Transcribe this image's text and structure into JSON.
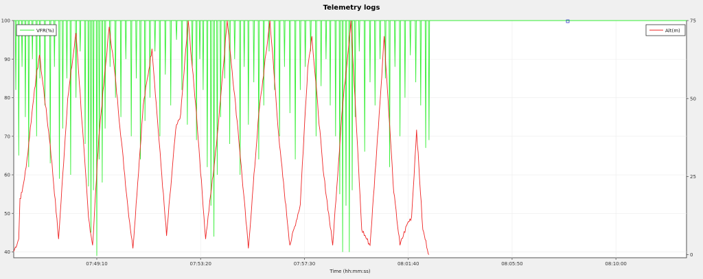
{
  "chart_data": {
    "type": "line",
    "title": "Telemetry logs",
    "xlabel": "Time (hh:mm:ss)",
    "x_ticks": [
      "07:49:10",
      "07:53:20",
      "07:57:30",
      "08:01:40",
      "08:05:50",
      "08:10:00"
    ],
    "y_left": {
      "ticks": [
        40,
        50,
        60,
        70,
        80,
        90,
        100
      ],
      "range": [
        38.5,
        100
      ]
    },
    "y_right": {
      "ticks": [
        0,
        25,
        50,
        75
      ],
      "range": [
        -1,
        75
      ]
    },
    "grid": true,
    "x_range_seconds": [
      0,
      1620
    ],
    "x_tick_seconds": [
      200,
      450,
      700,
      950,
      1200,
      1450
    ],
    "series": [
      {
        "name": "VFR(%)",
        "axis": "left",
        "color": "#33ee33",
        "legend_position": "top-left",
        "note": "mostly at 100 with many sharp downward spikes",
        "dips": [
          [
            5,
            82
          ],
          [
            12,
            65
          ],
          [
            20,
            88
          ],
          [
            28,
            75
          ],
          [
            36,
            62
          ],
          [
            45,
            90
          ],
          [
            55,
            70
          ],
          [
            63,
            85
          ],
          [
            75,
            78
          ],
          [
            88,
            63
          ],
          [
            98,
            88
          ],
          [
            110,
            59
          ],
          [
            118,
            72
          ],
          [
            128,
            85
          ],
          [
            137,
            60
          ],
          [
            150,
            80
          ],
          [
            160,
            92
          ],
          [
            172,
            68
          ],
          [
            180,
            57
          ],
          [
            186,
            45
          ],
          [
            192,
            56
          ],
          [
            200,
            39
          ],
          [
            206,
            64
          ],
          [
            213,
            58
          ],
          [
            220,
            72
          ],
          [
            232,
            88
          ],
          [
            245,
            80
          ],
          [
            258,
            75
          ],
          [
            270,
            90
          ],
          [
            283,
            70
          ],
          [
            295,
            85
          ],
          [
            305,
            64
          ],
          [
            316,
            74
          ],
          [
            328,
            80
          ],
          [
            340,
            92
          ],
          [
            352,
            70
          ],
          [
            365,
            86
          ],
          [
            378,
            78
          ],
          [
            392,
            95
          ],
          [
            405,
            82
          ],
          [
            418,
            73
          ],
          [
            430,
            88
          ],
          [
            440,
            69
          ],
          [
            448,
            90
          ],
          [
            456,
            82
          ],
          [
            466,
            62
          ],
          [
            475,
            52
          ],
          [
            482,
            44
          ],
          [
            490,
            60
          ],
          [
            498,
            75
          ],
          [
            508,
            85
          ],
          [
            520,
            68
          ],
          [
            532,
            90
          ],
          [
            545,
            60
          ],
          [
            555,
            88
          ],
          [
            565,
            73
          ],
          [
            578,
            84
          ],
          [
            590,
            64
          ],
          [
            602,
            78
          ],
          [
            615,
            92
          ],
          [
            628,
            82
          ],
          [
            640,
            70
          ],
          [
            652,
            88
          ],
          [
            665,
            76
          ],
          [
            678,
            64
          ],
          [
            690,
            82
          ],
          [
            702,
            88
          ],
          [
            715,
            92
          ],
          [
            728,
            70
          ],
          [
            740,
            83
          ],
          [
            752,
            90
          ],
          [
            762,
            78
          ],
          [
            775,
            70
          ],
          [
            785,
            55
          ],
          [
            792,
            40
          ],
          [
            800,
            52
          ],
          [
            808,
            40
          ],
          [
            815,
            56
          ],
          [
            822,
            75
          ],
          [
            832,
            92
          ],
          [
            845,
            66
          ],
          [
            858,
            84
          ],
          [
            870,
            78
          ],
          [
            882,
            90
          ],
          [
            895,
            85
          ],
          [
            905,
            62
          ],
          [
            918,
            88
          ],
          [
            930,
            70
          ],
          [
            942,
            80
          ],
          [
            955,
            91
          ],
          [
            968,
            84
          ],
          [
            980,
            78
          ],
          [
            992,
            67
          ],
          [
            1000,
            69
          ]
        ]
      },
      {
        "name": "Alt(m)",
        "axis": "right",
        "color": "#ee2222",
        "legend_position": "top-right",
        "extrema": [
          [
            0,
            1
          ],
          [
            12,
            5
          ],
          [
            15,
            18
          ],
          [
            20,
            20
          ],
          [
            30,
            28
          ],
          [
            50,
            53
          ],
          [
            62,
            64
          ],
          [
            88,
            35
          ],
          [
            108,
            5
          ],
          [
            130,
            50
          ],
          [
            150,
            71
          ],
          [
            180,
            12
          ],
          [
            190,
            3
          ],
          [
            205,
            38
          ],
          [
            230,
            73
          ],
          [
            242,
            60
          ],
          [
            275,
            15
          ],
          [
            287,
            2
          ],
          [
            312,
            48
          ],
          [
            333,
            66
          ],
          [
            345,
            45
          ],
          [
            368,
            6
          ],
          [
            390,
            40
          ],
          [
            402,
            45
          ],
          [
            420,
            75
          ],
          [
            440,
            45
          ],
          [
            462,
            5
          ],
          [
            488,
            35
          ],
          [
            514,
            75
          ],
          [
            540,
            40
          ],
          [
            565,
            2
          ],
          [
            590,
            45
          ],
          [
            617,
            75
          ],
          [
            640,
            35
          ],
          [
            665,
            3
          ],
          [
            690,
            16
          ],
          [
            695,
            29
          ],
          [
            708,
            60
          ],
          [
            718,
            70
          ],
          [
            745,
            27
          ],
          [
            768,
            3
          ],
          [
            790,
            45
          ],
          [
            812,
            75
          ],
          [
            838,
            8
          ],
          [
            858,
            3
          ],
          [
            880,
            45
          ],
          [
            892,
            70
          ],
          [
            915,
            20
          ],
          [
            930,
            3
          ],
          [
            948,
            10
          ],
          [
            958,
            12
          ],
          [
            970,
            40
          ],
          [
            985,
            8
          ],
          [
            1000,
            0
          ]
        ]
      }
    ]
  }
}
